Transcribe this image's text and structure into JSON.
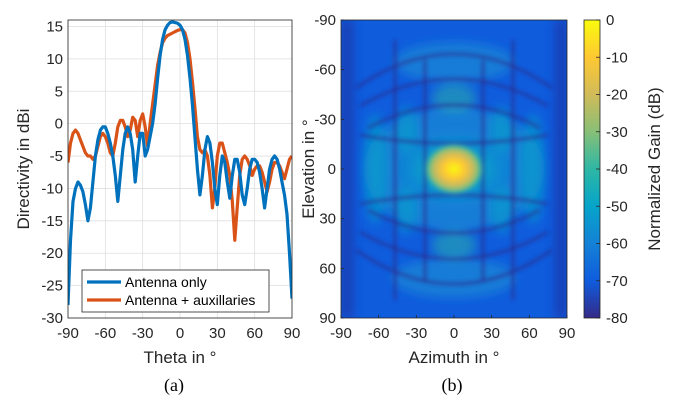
{
  "colors": {
    "antenna_only": "#0072BD",
    "antenna_aux": "#D95319",
    "grid": "#dfdfdf",
    "axis": "#262626"
  },
  "chart_data": [
    {
      "type": "line",
      "caption": "(a)",
      "xlabel": "Theta in °",
      "ylabel": "Directivity in dBi",
      "xlim": [
        -90,
        90
      ],
      "ylim": [
        -30,
        16
      ],
      "xticks": [
        -90,
        -60,
        -30,
        0,
        30,
        60,
        90
      ],
      "yticks": [
        -30,
        -25,
        -20,
        -15,
        -10,
        -5,
        0,
        5,
        10,
        15
      ],
      "grid": true,
      "legend_position": "bottom",
      "series": [
        {
          "name": "Antenna only",
          "x": [
            -90,
            -88,
            -86,
            -84,
            -82,
            -80,
            -78,
            -76,
            -74,
            -72,
            -70,
            -68,
            -66,
            -64,
            -62,
            -60,
            -58,
            -56,
            -54,
            -52,
            -50,
            -48,
            -46,
            -44,
            -42,
            -40,
            -38,
            -36,
            -34,
            -32,
            -30,
            -28,
            -26,
            -24,
            -22,
            -20,
            -18,
            -16,
            -14,
            -12,
            -10,
            -8,
            -6,
            -4,
            -2,
            0,
            2,
            4,
            6,
            8,
            10,
            12,
            14,
            16,
            18,
            20,
            22,
            24,
            26,
            28,
            30,
            32,
            34,
            36,
            38,
            40,
            42,
            44,
            46,
            48,
            50,
            52,
            54,
            56,
            58,
            60,
            62,
            64,
            66,
            68,
            70,
            72,
            74,
            76,
            78,
            80,
            82,
            84,
            86,
            88,
            90
          ],
          "values": [
            -28,
            -18,
            -12,
            -10,
            -9,
            -9.5,
            -10.5,
            -12.5,
            -15,
            -13,
            -9,
            -5,
            -2.5,
            -1,
            -0.5,
            -0.5,
            -1.5,
            -3,
            -5,
            -8,
            -12,
            -8,
            -4,
            -1.5,
            -0.5,
            -1.5,
            -4,
            -9,
            -5,
            -1.5,
            -1.5,
            -5,
            -4,
            -2,
            0,
            3,
            7,
            10.5,
            13,
            14.5,
            15.2,
            15.6,
            15.7,
            15.6,
            15.5,
            15.2,
            14.5,
            13,
            10.5,
            7,
            3,
            -2,
            -7,
            -11,
            -8,
            -4,
            -2,
            -3,
            -6,
            -10,
            -12.5,
            -8,
            -5,
            -6,
            -9,
            -11.5,
            -8,
            -5.5,
            -5.5,
            -7.5,
            -11,
            -12.5,
            -10,
            -7,
            -5.5,
            -5.5,
            -6,
            -7.5,
            -10,
            -13,
            -10,
            -7,
            -5.5,
            -5,
            -5.5,
            -7,
            -9,
            -11,
            -14,
            -20,
            -27
          ]
        },
        {
          "name": "Antenna + auxillaries",
          "x": [
            -90,
            -88,
            -86,
            -84,
            -82,
            -80,
            -78,
            -76,
            -74,
            -72,
            -70,
            -68,
            -66,
            -64,
            -62,
            -60,
            -58,
            -56,
            -54,
            -52,
            -50,
            -48,
            -46,
            -44,
            -42,
            -40,
            -38,
            -36,
            -34,
            -32,
            -30,
            -28,
            -26,
            -24,
            -22,
            -20,
            -18,
            -16,
            -14,
            -12,
            -10,
            -8,
            -6,
            -4,
            -2,
            0,
            2,
            4,
            6,
            8,
            10,
            12,
            14,
            16,
            18,
            20,
            22,
            24,
            26,
            28,
            30,
            32,
            34,
            36,
            38,
            40,
            42,
            44,
            46,
            48,
            50,
            52,
            54,
            56,
            58,
            60,
            62,
            64,
            66,
            68,
            70,
            72,
            74,
            76,
            78,
            80,
            82,
            84,
            86,
            88,
            90
          ],
          "values": [
            -6,
            -3,
            -1.5,
            -1,
            -1.5,
            -2.5,
            -3.5,
            -4.5,
            -5,
            -5,
            -5.5,
            -5,
            -3.5,
            -2,
            -1.5,
            -2,
            -3,
            -4.5,
            -5,
            -3,
            -0.5,
            0.5,
            0.5,
            -0.5,
            -2,
            -1,
            1,
            0.5,
            -2,
            0.5,
            1.5,
            -0.5,
            -3.5,
            0,
            3,
            6,
            9,
            11,
            12.5,
            13.2,
            13.6,
            13.8,
            14,
            14.2,
            14.4,
            14.5,
            14.5,
            14,
            12.5,
            10,
            6.5,
            2.5,
            -2,
            -4,
            -4.5,
            -4,
            -5,
            -8,
            -13,
            -10,
            -5,
            -3,
            -3,
            -4.5,
            -6,
            -8,
            -12,
            -18,
            -13,
            -8,
            -5.5,
            -5,
            -5.5,
            -6.5,
            -8,
            -7,
            -6.5,
            -6.5,
            -7.5,
            -9,
            -10.5,
            -9,
            -7,
            -6,
            -6,
            -6.5,
            -7.5,
            -8.5,
            -7,
            -5.5,
            -5
          ]
        }
      ]
    },
    {
      "type": "heatmap",
      "caption": "(b)",
      "xlabel": "Azimuth in °",
      "ylabel": "Elevation in °",
      "xlim": [
        -90,
        90
      ],
      "ylim": [
        -90,
        90
      ],
      "xticks": [
        -90,
        -60,
        -30,
        0,
        30,
        60,
        90
      ],
      "yticks": [
        -90,
        -60,
        -30,
        0,
        30,
        60,
        90
      ],
      "y_direction": "reversed",
      "colorbar": {
        "label": "Normalized Gain (dB)",
        "range": [
          -80,
          0
        ],
        "ticks": [
          0,
          -10,
          -20,
          -30,
          -40,
          -50,
          -60,
          -70,
          -80
        ],
        "colormap": "parula"
      },
      "peak": {
        "azimuth": 0,
        "elevation": 0,
        "gain": 0
      }
    }
  ]
}
